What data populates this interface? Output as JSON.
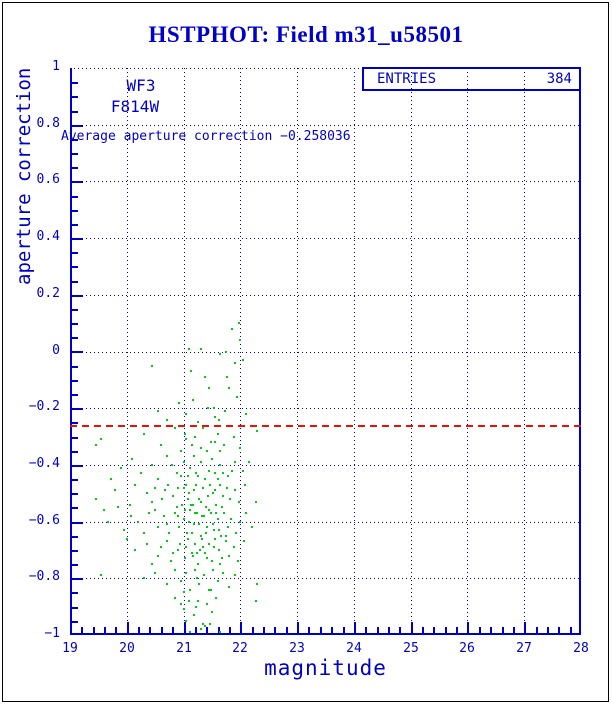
{
  "page": {
    "title": "HSTPHOT: Field m31_u58501"
  },
  "colors": {
    "axis_blue": "#0000cc",
    "point_green": "#00cc11",
    "mean_line_red": "#ee1100",
    "background": "#ffffff",
    "outer_border": "#000000"
  },
  "stats_box": {
    "label": "ENTRIES",
    "value": "384"
  },
  "annotations": {
    "camera": "WF3",
    "filter": "F814W",
    "average_text": "Average aperture correction −0.258036"
  },
  "chart_data": {
    "type": "scatter",
    "title": "HSTPHOT: Field m31_u58501",
    "xlabel": "magnitude",
    "ylabel": "aperture correction",
    "xlim": [
      19,
      28
    ],
    "ylim": [
      -1,
      1
    ],
    "x_major_step": 1,
    "x_minor_step": 0.2,
    "y_major_step": 0.2,
    "y_minor_step": 0.05,
    "x_tick_labels": [
      "19",
      "20",
      "21",
      "22",
      "23",
      "24",
      "25",
      "26",
      "27",
      "28"
    ],
    "y_tick_labels": [
      "1",
      "0.8",
      "0.6",
      "0.4",
      "0.2",
      "0",
      "−0.2",
      "−0.4",
      "−0.6",
      "−0.8",
      "−1"
    ],
    "grid": "dotted blue at major ticks, full frame, top edge dotted",
    "legend": "none",
    "entries": 384,
    "mean_line": {
      "value": -0.258036,
      "style": "dashed",
      "color": "#ee1100"
    },
    "points": [
      [
        21.86,
        0.08
      ],
      [
        22.0,
        0.04
      ],
      [
        21.97,
        0.1
      ],
      [
        21.1,
        0.01
      ],
      [
        21.3,
        0.01
      ],
      [
        21.65,
        -0.01
      ],
      [
        21.75,
        0.0
      ],
      [
        22.05,
        -0.03
      ],
      [
        20.45,
        -0.05
      ],
      [
        21.9,
        -0.04
      ],
      [
        21.13,
        -0.07
      ],
      [
        21.38,
        -0.09
      ],
      [
        21.45,
        -0.13
      ],
      [
        21.77,
        -0.09
      ],
      [
        21.8,
        -0.13
      ],
      [
        20.92,
        -0.18
      ],
      [
        21.17,
        -0.17
      ],
      [
        21.43,
        -0.2
      ],
      [
        21.54,
        -0.2
      ],
      [
        21.73,
        -0.21
      ],
      [
        21.56,
        -0.23
      ],
      [
        21.95,
        -0.16
      ],
      [
        22.1,
        -0.22
      ],
      [
        20.7,
        -0.24
      ],
      [
        21.05,
        -0.22
      ],
      [
        21.62,
        -0.24
      ],
      [
        21.25,
        -0.25
      ],
      [
        20.55,
        -0.21
      ],
      [
        19.55,
        -0.31
      ],
      [
        20.85,
        -0.27
      ],
      [
        21.02,
        -0.29
      ],
      [
        21.2,
        -0.3
      ],
      [
        21.35,
        -0.27
      ],
      [
        21.48,
        -0.32
      ],
      [
        21.6,
        -0.29
      ],
      [
        21.72,
        -0.33
      ],
      [
        21.88,
        -0.3
      ],
      [
        22.3,
        -0.28
      ],
      [
        20.6,
        -0.33
      ],
      [
        20.95,
        -0.35
      ],
      [
        21.15,
        -0.33
      ],
      [
        21.42,
        -0.35
      ],
      [
        21.65,
        -0.35
      ],
      [
        21.05,
        -0.31
      ],
      [
        21.3,
        -0.34
      ],
      [
        21.55,
        -0.32
      ],
      [
        20.3,
        -0.29
      ],
      [
        22.0,
        -0.34
      ],
      [
        20.1,
        -0.38
      ],
      [
        20.45,
        -0.4
      ],
      [
        20.7,
        -0.37
      ],
      [
        20.88,
        -0.43
      ],
      [
        21.0,
        -0.39
      ],
      [
        21.08,
        -0.44
      ],
      [
        21.18,
        -0.37
      ],
      [
        21.22,
        -0.43
      ],
      [
        21.3,
        -0.39
      ],
      [
        21.38,
        -0.45
      ],
      [
        21.5,
        -0.38
      ],
      [
        21.55,
        -0.43
      ],
      [
        21.65,
        -0.4
      ],
      [
        21.78,
        -0.44
      ],
      [
        21.9,
        -0.39
      ],
      [
        22.05,
        -0.42
      ],
      [
        22.15,
        -0.39
      ],
      [
        20.55,
        -0.45
      ],
      [
        20.25,
        -0.43
      ],
      [
        19.9,
        -0.41
      ],
      [
        21.12,
        -0.41
      ],
      [
        21.45,
        -0.42
      ],
      [
        21.7,
        -0.43
      ],
      [
        20.8,
        -0.4
      ],
      [
        20.95,
        -0.44
      ],
      [
        21.25,
        -0.44
      ],
      [
        21.6,
        -0.45
      ],
      [
        21.85,
        -0.42
      ],
      [
        19.46,
        -0.33
      ],
      [
        20.15,
        -0.47
      ],
      [
        20.35,
        -0.5
      ],
      [
        20.5,
        -0.48
      ],
      [
        20.62,
        -0.52
      ],
      [
        20.72,
        -0.47
      ],
      [
        20.82,
        -0.51
      ],
      [
        20.9,
        -0.48
      ],
      [
        20.98,
        -0.54
      ],
      [
        21.04,
        -0.47
      ],
      [
        21.1,
        -0.5
      ],
      [
        21.16,
        -0.54
      ],
      [
        21.22,
        -0.47
      ],
      [
        21.28,
        -0.52
      ],
      [
        21.34,
        -0.48
      ],
      [
        21.4,
        -0.55
      ],
      [
        21.46,
        -0.47
      ],
      [
        21.52,
        -0.5
      ],
      [
        21.58,
        -0.54
      ],
      [
        21.64,
        -0.47
      ],
      [
        21.7,
        -0.51
      ],
      [
        21.76,
        -0.48
      ],
      [
        21.82,
        -0.52
      ],
      [
        21.9,
        -0.49
      ],
      [
        21.98,
        -0.53
      ],
      [
        22.08,
        -0.47
      ],
      [
        22.27,
        -0.53
      ],
      [
        20.05,
        -0.54
      ],
      [
        19.8,
        -0.49
      ],
      [
        21.07,
        -0.52
      ],
      [
        21.19,
        -0.49
      ],
      [
        21.31,
        -0.53
      ],
      [
        21.43,
        -0.51
      ],
      [
        21.55,
        -0.49
      ],
      [
        21.67,
        -0.55
      ],
      [
        20.45,
        -0.53
      ],
      [
        20.68,
        -0.49
      ],
      [
        20.88,
        -0.55
      ],
      [
        21.0,
        -0.48
      ],
      [
        21.13,
        -0.54
      ],
      [
        19.46,
        -0.52
      ],
      [
        20.2,
        -0.6
      ],
      [
        20.4,
        -0.57
      ],
      [
        20.55,
        -0.62
      ],
      [
        20.65,
        -0.58
      ],
      [
        20.75,
        -0.64
      ],
      [
        20.85,
        -0.57
      ],
      [
        20.92,
        -0.62
      ],
      [
        21.0,
        -0.59
      ],
      [
        21.06,
        -0.64
      ],
      [
        21.12,
        -0.56
      ],
      [
        21.18,
        -0.61
      ],
      [
        21.24,
        -0.57
      ],
      [
        21.3,
        -0.65
      ],
      [
        21.36,
        -0.58
      ],
      [
        21.42,
        -0.62
      ],
      [
        21.48,
        -0.57
      ],
      [
        21.54,
        -0.63
      ],
      [
        21.6,
        -0.59
      ],
      [
        21.66,
        -0.65
      ],
      [
        21.72,
        -0.57
      ],
      [
        21.78,
        -0.62
      ],
      [
        21.84,
        -0.59
      ],
      [
        21.92,
        -0.64
      ],
      [
        22.0,
        -0.6
      ],
      [
        22.1,
        -0.57
      ],
      [
        19.67,
        -0.6
      ],
      [
        19.95,
        -0.63
      ],
      [
        20.08,
        -0.58
      ],
      [
        21.03,
        -0.56
      ],
      [
        21.09,
        -0.6
      ],
      [
        21.15,
        -0.64
      ],
      [
        21.21,
        -0.57
      ],
      [
        21.27,
        -0.61
      ],
      [
        21.33,
        -0.58
      ],
      [
        21.39,
        -0.64
      ],
      [
        21.45,
        -0.56
      ],
      [
        21.51,
        -0.61
      ],
      [
        21.57,
        -0.57
      ],
      [
        21.63,
        -0.63
      ],
      [
        20.3,
        -0.64
      ],
      [
        20.5,
        -0.56
      ],
      [
        20.7,
        -0.61
      ],
      [
        20.9,
        -0.58
      ],
      [
        21.75,
        -0.65
      ],
      [
        22.2,
        -0.62
      ],
      [
        20.35,
        -0.68
      ],
      [
        20.55,
        -0.72
      ],
      [
        20.7,
        -0.67
      ],
      [
        20.82,
        -0.71
      ],
      [
        20.94,
        -0.68
      ],
      [
        21.02,
        -0.73
      ],
      [
        21.08,
        -0.66
      ],
      [
        21.14,
        -0.71
      ],
      [
        21.2,
        -0.68
      ],
      [
        21.26,
        -0.75
      ],
      [
        21.32,
        -0.66
      ],
      [
        21.38,
        -0.71
      ],
      [
        21.44,
        -0.68
      ],
      [
        21.5,
        -0.74
      ],
      [
        21.56,
        -0.66
      ],
      [
        21.62,
        -0.7
      ],
      [
        21.68,
        -0.73
      ],
      [
        21.74,
        -0.67
      ],
      [
        21.8,
        -0.72
      ],
      [
        21.88,
        -0.69
      ],
      [
        21.96,
        -0.74
      ],
      [
        22.06,
        -0.67
      ],
      [
        20.15,
        -0.7
      ],
      [
        20.45,
        -0.75
      ],
      [
        21.05,
        -0.69
      ],
      [
        21.17,
        -0.72
      ],
      [
        21.29,
        -0.7
      ],
      [
        21.41,
        -0.73
      ],
      [
        21.53,
        -0.69
      ],
      [
        21.65,
        -0.75
      ],
      [
        20.6,
        -0.69
      ],
      [
        20.78,
        -0.74
      ],
      [
        20.9,
        -0.7
      ],
      [
        21.23,
        -0.71
      ],
      [
        21.35,
        -0.69
      ],
      [
        20.5,
        -0.78
      ],
      [
        20.7,
        -0.82
      ],
      [
        20.85,
        -0.77
      ],
      [
        20.95,
        -0.81
      ],
      [
        21.05,
        -0.78
      ],
      [
        21.12,
        -0.84
      ],
      [
        21.2,
        -0.77
      ],
      [
        21.28,
        -0.82
      ],
      [
        21.36,
        -0.79
      ],
      [
        21.44,
        -0.84
      ],
      [
        21.52,
        -0.77
      ],
      [
        21.6,
        -0.81
      ],
      [
        21.7,
        -0.78
      ],
      [
        21.8,
        -0.83
      ],
      [
        21.9,
        -0.79
      ],
      [
        22.3,
        -0.82
      ],
      [
        21.0,
        -0.85
      ],
      [
        21.24,
        -0.8
      ],
      [
        21.48,
        -0.84
      ],
      [
        20.3,
        -0.8
      ],
      [
        20.85,
        -0.87
      ],
      [
        21.0,
        -0.91
      ],
      [
        21.1,
        -0.88
      ],
      [
        21.18,
        -0.93
      ],
      [
        21.26,
        -0.88
      ],
      [
        21.34,
        -0.96
      ],
      [
        21.42,
        -0.89
      ],
      [
        21.5,
        -0.92
      ],
      [
        21.58,
        -0.87
      ],
      [
        21.3,
        -0.98
      ],
      [
        21.38,
        -0.97
      ],
      [
        21.65,
        -0.99
      ],
      [
        21.05,
        -0.95
      ],
      [
        21.22,
        -0.9
      ],
      [
        22.27,
        -0.88
      ],
      [
        20.95,
        -0.89
      ],
      [
        21.46,
        -0.96
      ],
      [
        21.12,
        -0.99
      ],
      [
        19.55,
        -0.79
      ],
      [
        19.6,
        -0.56
      ],
      [
        19.72,
        -0.45
      ],
      [
        19.85,
        -0.55
      ],
      [
        20.0,
        -0.66
      ]
    ]
  }
}
